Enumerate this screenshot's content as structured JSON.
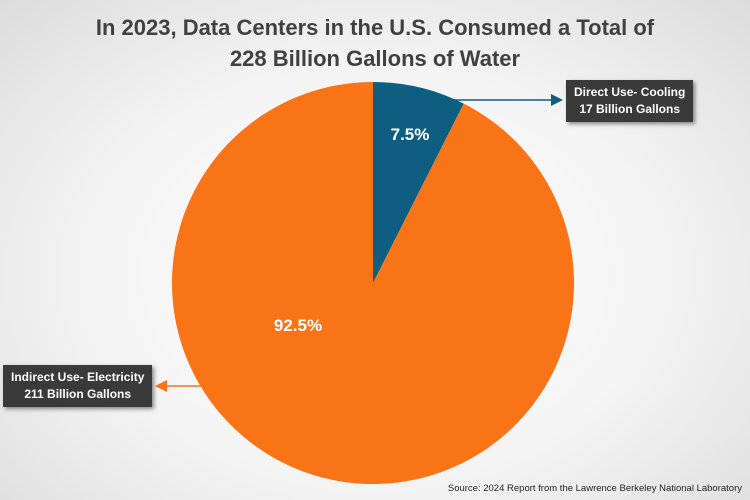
{
  "chart_data": {
    "type": "pie",
    "title_lines": [
      "In 2023, Data Centers in the U.S. Consumed a Total of",
      "228 Billion Gallons of Water"
    ],
    "slices": [
      {
        "label": "Direct Use- Cooling",
        "detail": "17 Billion Gallons",
        "value": 17,
        "percent_label": "7.5%",
        "color": "#0e5e82"
      },
      {
        "label": "Indirect Use- Electricity",
        "detail": "211 Billion Gallons",
        "value": 211,
        "percent_label": "92.5%",
        "color": "#f97416"
      }
    ],
    "start": "12 o'clock, clockwise",
    "source": "Source: 2024 Report from the Lawrence Berkeley National Laboratory"
  }
}
